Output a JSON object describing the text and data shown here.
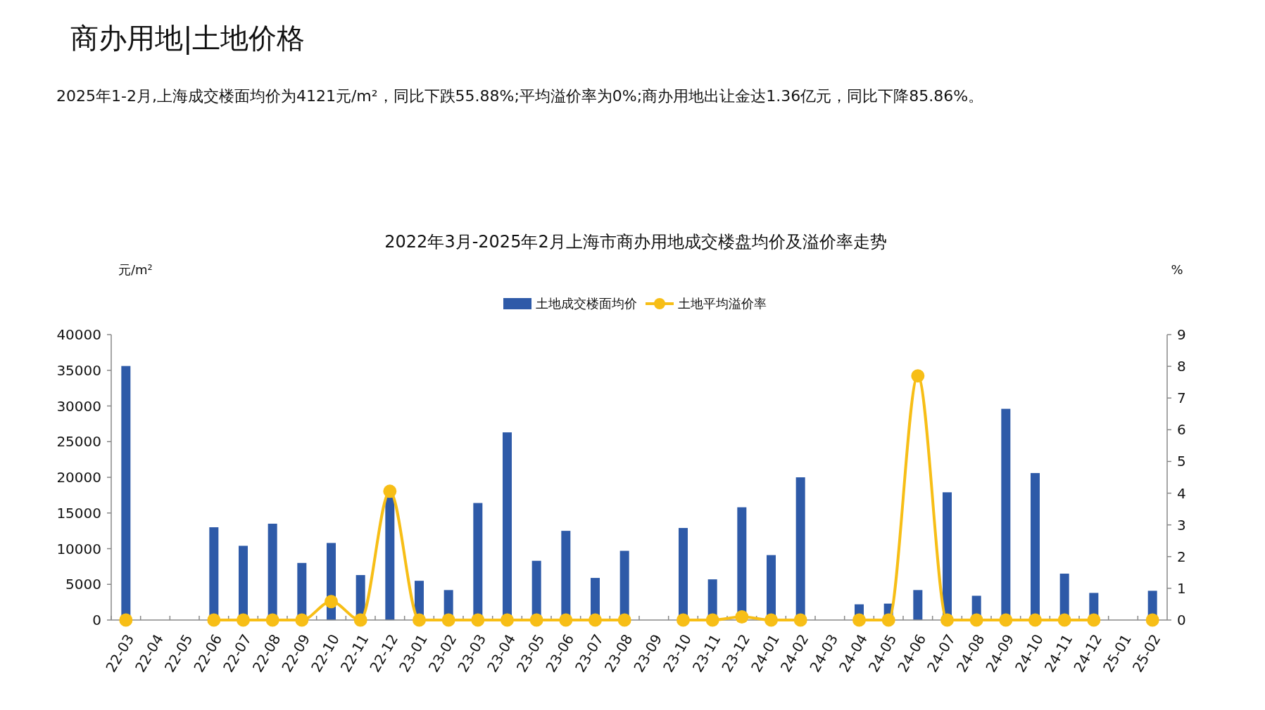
{
  "chart_data": {
    "type": "bar",
    "title": "2022年3月-2025年2月上海市商办用地成交楼盘均价及溢价率走势",
    "annotations": [
      "商办用地|土地价格",
      "2025年1-2月,上海成交楼面均价为4121元/m²，同比下跌55.88%;平均溢价率为0%;商办用地出让金达1.36亿元，同比下降85.86%。"
    ],
    "ylabel": "元/m²",
    "y2label": "%",
    "categories": [
      "22-03",
      "22-04",
      "22-05",
      "22-06",
      "22-07",
      "22-08",
      "22-09",
      "22-10",
      "22-11",
      "22-12",
      "23-01",
      "23-02",
      "23-03",
      "23-04",
      "23-05",
      "23-06",
      "23-07",
      "23-08",
      "23-09",
      "23-10",
      "23-11",
      "23-12",
      "24-01",
      "24-02",
      "24-03",
      "24-04",
      "24-05",
      "24-06",
      "24-07",
      "24-08",
      "24-09",
      "24-10",
      "24-11",
      "24-12",
      "25-01",
      "25-02"
    ],
    "series": [
      {
        "name": "土地成交楼面均价",
        "color": "#2e5aa8",
        "values": [
          35600,
          null,
          null,
          13000,
          10400,
          13500,
          8000,
          10800,
          6300,
          17200,
          5500,
          4200,
          16400,
          26300,
          8300,
          12500,
          5900,
          9700,
          null,
          12900,
          5700,
          15800,
          9100,
          20000,
          null,
          2200,
          2300,
          4200,
          17900,
          3400,
          29600,
          20600,
          6500,
          3800,
          null,
          4100
        ]
      },
      {
        "name": "土地平均溢价率",
        "type": "line",
        "axis": "y2",
        "color": "#f7be16",
        "marker": "circle",
        "values": [
          0,
          null,
          null,
          0,
          0,
          0,
          0,
          0.58,
          0,
          4.06,
          0,
          0,
          0,
          0,
          0,
          0,
          0,
          0,
          null,
          0,
          0,
          0.1,
          0,
          0,
          null,
          0,
          0,
          7.7,
          0,
          0,
          0,
          0,
          0,
          0,
          null,
          0
        ]
      }
    ],
    "ylim": [
      0,
      40000
    ],
    "yticks": [
      0,
      5000,
      10000,
      15000,
      20000,
      25000,
      30000,
      35000,
      40000
    ],
    "y2lim": [
      0,
      9
    ],
    "y2ticks": [
      0,
      1,
      2,
      3,
      4,
      5,
      6,
      7,
      8,
      9
    ],
    "legend": "top",
    "grid": false
  }
}
